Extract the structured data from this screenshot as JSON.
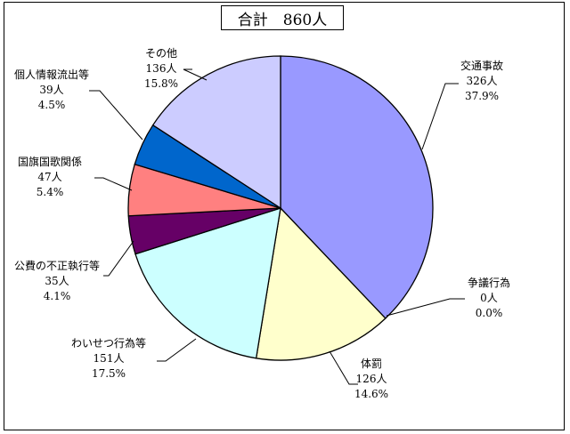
{
  "chart_data": {
    "type": "pie",
    "title": "合計　860人",
    "total": 860,
    "slices": [
      {
        "name": "交通事故",
        "count": "326人",
        "pct": "37.9%",
        "value": 326,
        "color": "#9999ff"
      },
      {
        "name": "争議行為",
        "count": "0人",
        "pct": "0.0%",
        "value": 0,
        "color": "#ffffff"
      },
      {
        "name": "体罰",
        "count": "126人",
        "pct": "14.6%",
        "value": 126,
        "color": "#ffffcc"
      },
      {
        "name": "わいせつ行為等",
        "count": "151人",
        "pct": "17.5%",
        "value": 151,
        "color": "#ccffff"
      },
      {
        "name": "公費の不正執行等",
        "count": "35人",
        "pct": "4.1%",
        "value": 35,
        "color": "#660066"
      },
      {
        "name": "国旗国歌関係",
        "count": "47人",
        "pct": "5.4%",
        "value": 47,
        "color": "#ff8080"
      },
      {
        "name": "個人情報流出等",
        "count": "39人",
        "pct": "4.5%",
        "value": 39,
        "color": "#0066cc"
      },
      {
        "name": "その他",
        "count": "136人",
        "pct": "15.8%",
        "value": 136,
        "color": "#ccccff"
      }
    ]
  }
}
